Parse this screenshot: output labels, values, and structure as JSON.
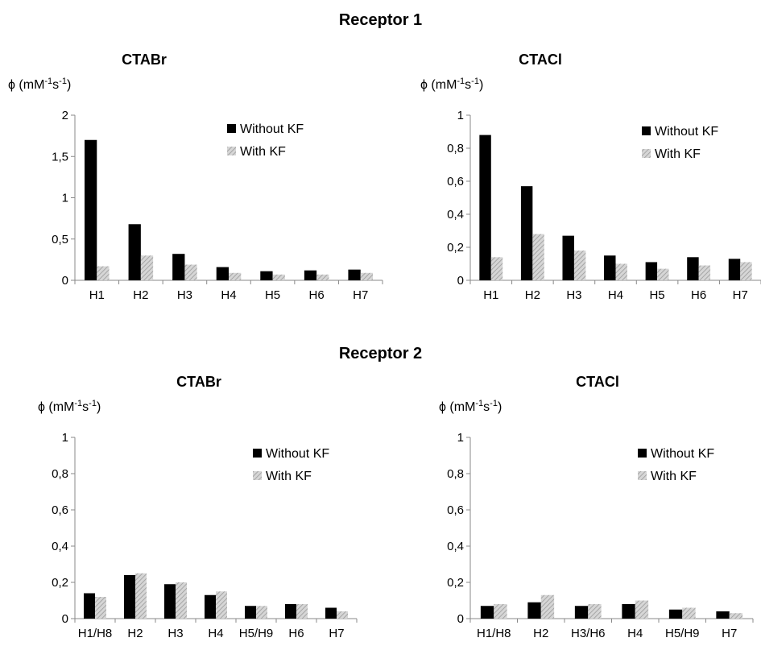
{
  "sections": [
    "Receptor 1",
    "Receptor 2"
  ],
  "colors": {
    "without": "#000000",
    "with": "#b8b8b8",
    "axis": "#888888"
  },
  "chart_data": [
    {
      "type": "bar",
      "title": "CTABr",
      "ylabel": "ϕ (mM-1s-1)",
      "ylim": [
        0,
        2
      ],
      "yticks": [
        "0",
        "0,5",
        "1",
        "1,5",
        "2"
      ],
      "categories": [
        "H1",
        "H2",
        "H3",
        "H4",
        "H5",
        "H6",
        "H7"
      ],
      "series": [
        {
          "name": "Without KF",
          "values": [
            1.7,
            0.68,
            0.32,
            0.16,
            0.11,
            0.12,
            0.13
          ]
        },
        {
          "name": "With KF",
          "values": [
            0.17,
            0.3,
            0.19,
            0.09,
            0.07,
            0.07,
            0.09
          ]
        }
      ],
      "legend": "top-right",
      "grid": false
    },
    {
      "type": "bar",
      "title": "CTACl",
      "ylabel": "ϕ (mM-1s-1)",
      "ylim": [
        0,
        1
      ],
      "yticks": [
        "0",
        "0,2",
        "0,4",
        "0,6",
        "0,8",
        "1"
      ],
      "categories": [
        "H1",
        "H2",
        "H3",
        "H4",
        "H5",
        "H6",
        "H7"
      ],
      "series": [
        {
          "name": "Without KF",
          "values": [
            0.88,
            0.57,
            0.27,
            0.15,
            0.11,
            0.14,
            0.13
          ]
        },
        {
          "name": "With KF",
          "values": [
            0.14,
            0.28,
            0.18,
            0.1,
            0.07,
            0.09,
            0.11
          ]
        }
      ],
      "legend": "top-right",
      "grid": false
    },
    {
      "type": "bar",
      "title": "CTABr",
      "ylabel": "ϕ (mM-1s-1)",
      "ylim": [
        0,
        1
      ],
      "yticks": [
        "0",
        "0,2",
        "0,4",
        "0,6",
        "0,8",
        "1"
      ],
      "categories": [
        "H1/H8",
        "H2",
        "H3",
        "H4",
        "H5/H9",
        "H6",
        "H7"
      ],
      "series": [
        {
          "name": "Without KF",
          "values": [
            0.14,
            0.24,
            0.19,
            0.13,
            0.07,
            0.08,
            0.06
          ]
        },
        {
          "name": "With KF",
          "values": [
            0.12,
            0.25,
            0.2,
            0.15,
            0.07,
            0.08,
            0.04
          ]
        }
      ],
      "legend": "top-right",
      "grid": false
    },
    {
      "type": "bar",
      "title": "CTACl",
      "ylabel": "ϕ (mM-1s-1)",
      "ylim": [
        0,
        1
      ],
      "yticks": [
        "0",
        "0,2",
        "0,4",
        "0,6",
        "0,8",
        "1"
      ],
      "categories": [
        "H1/H8",
        "H2",
        "H3/H6",
        "H4",
        "H5/H9",
        "H7"
      ],
      "series": [
        {
          "name": "Without KF",
          "values": [
            0.07,
            0.09,
            0.07,
            0.08,
            0.05,
            0.04
          ]
        },
        {
          "name": "With KF",
          "values": [
            0.08,
            0.13,
            0.08,
            0.1,
            0.06,
            0.03
          ]
        }
      ],
      "legend": "top-right",
      "grid": false
    }
  ]
}
